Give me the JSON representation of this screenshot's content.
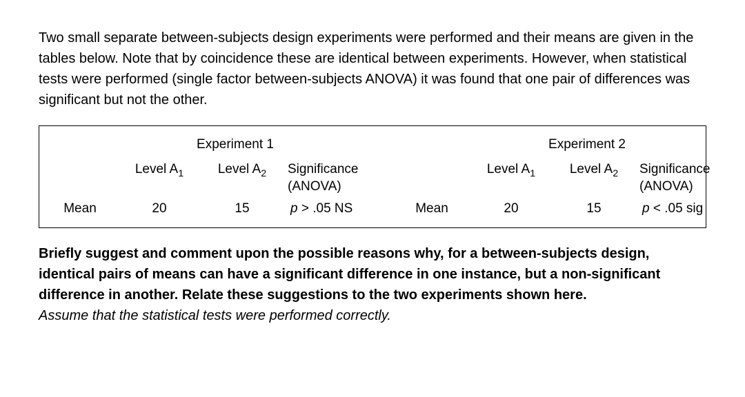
{
  "page": {
    "background_color": "#ffffff",
    "text_color": "#000000",
    "font_family": "Arial",
    "base_fontsize_pt": 15
  },
  "intro": "Two small separate between-subjects design experiments were performed and their means are given in the tables below. Note that by coincidence these are identical between experiments. However, when statistical tests were performed (single factor between-subjects ANOVA) it was found that one pair of differences was significant but not the other.",
  "table": {
    "border_color": "#000000",
    "experiments": [
      {
        "title": "Experiment 1",
        "row_label": "Mean",
        "columns": {
          "level_a1_label": "Level A",
          "level_a1_sub": "1",
          "level_a2_label": "Level A",
          "level_a2_sub": "2",
          "sig_label_line1": "Significance",
          "sig_label_line2": "(ANOVA)"
        },
        "values": {
          "a1": "20",
          "a2": "15",
          "sig_prefix": "p",
          "sig_rest": " > .05 NS"
        }
      },
      {
        "title": "Experiment 2",
        "row_label": "Mean",
        "columns": {
          "level_a1_label": "Level A",
          "level_a1_sub": "1",
          "level_a2_label": "Level A",
          "level_a2_sub": "2",
          "sig_label_line1": "Significance",
          "sig_label_line2": "(ANOVA)"
        },
        "values": {
          "a1": "20",
          "a2": "15",
          "sig_prefix": "p",
          "sig_rest": " < .05 sig"
        }
      }
    ]
  },
  "question": "Briefly suggest and comment upon the possible reasons why, for a between-subjects design, identical pairs of means can have a significant difference in one instance, but a non-significant difference in another. Relate these suggestions to the two experiments shown here.",
  "assume": "Assume that the statistical tests were performed correctly."
}
